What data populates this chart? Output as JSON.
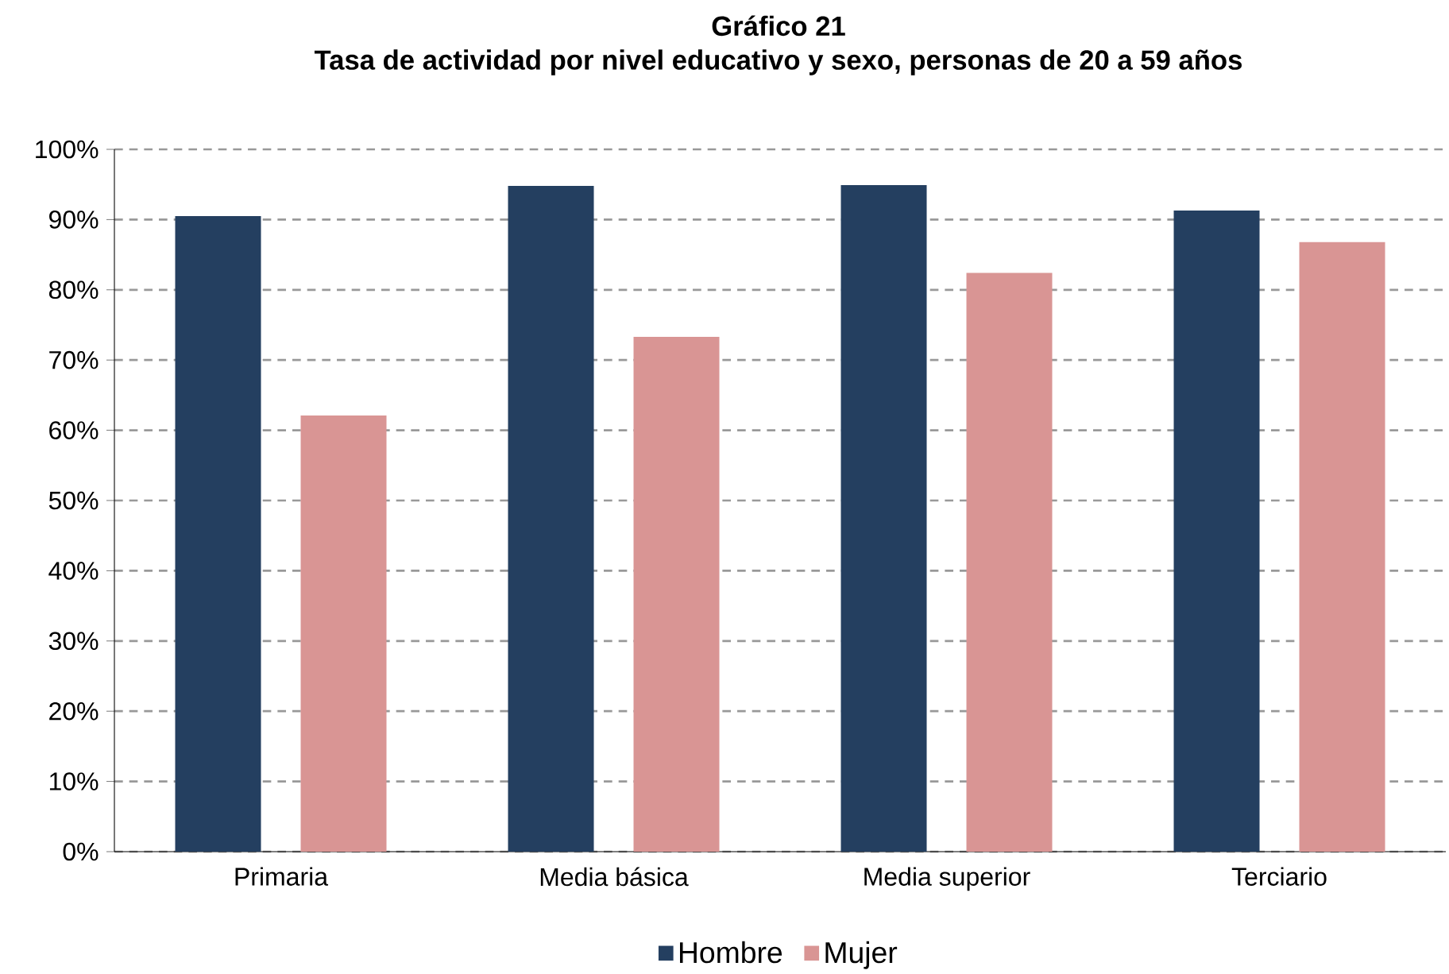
{
  "chart_data": {
    "type": "bar",
    "title": "Gráfico 21",
    "subtitle": "Tasa de actividad por nivel educativo y sexo, personas de 20 a 59 años",
    "categories": [
      "Primaria",
      "Media básica",
      "Media superior",
      "Terciario"
    ],
    "series": [
      {
        "name": "Hombre",
        "color": "#243f60",
        "values": [
          90.5,
          94.8,
          94.9,
          91.3
        ]
      },
      {
        "name": "Mujer",
        "color": "#d99594",
        "values": [
          62.1,
          73.3,
          82.4,
          86.8
        ]
      }
    ],
    "ylim": [
      0,
      100
    ],
    "yticks": [
      {
        "value": 0,
        "label": "0%"
      },
      {
        "value": 10,
        "label": "10%"
      },
      {
        "value": 20,
        "label": "20%"
      },
      {
        "value": 30,
        "label": "30%"
      },
      {
        "value": 40,
        "label": "40%"
      },
      {
        "value": 50,
        "label": "50%"
      },
      {
        "value": 60,
        "label": "60%"
      },
      {
        "value": 70,
        "label": "70%"
      },
      {
        "value": 80,
        "label": "80%"
      },
      {
        "value": 90,
        "label": "90%"
      },
      {
        "value": 100,
        "label": "100%"
      }
    ],
    "grid": "y",
    "legend": "bottom"
  }
}
